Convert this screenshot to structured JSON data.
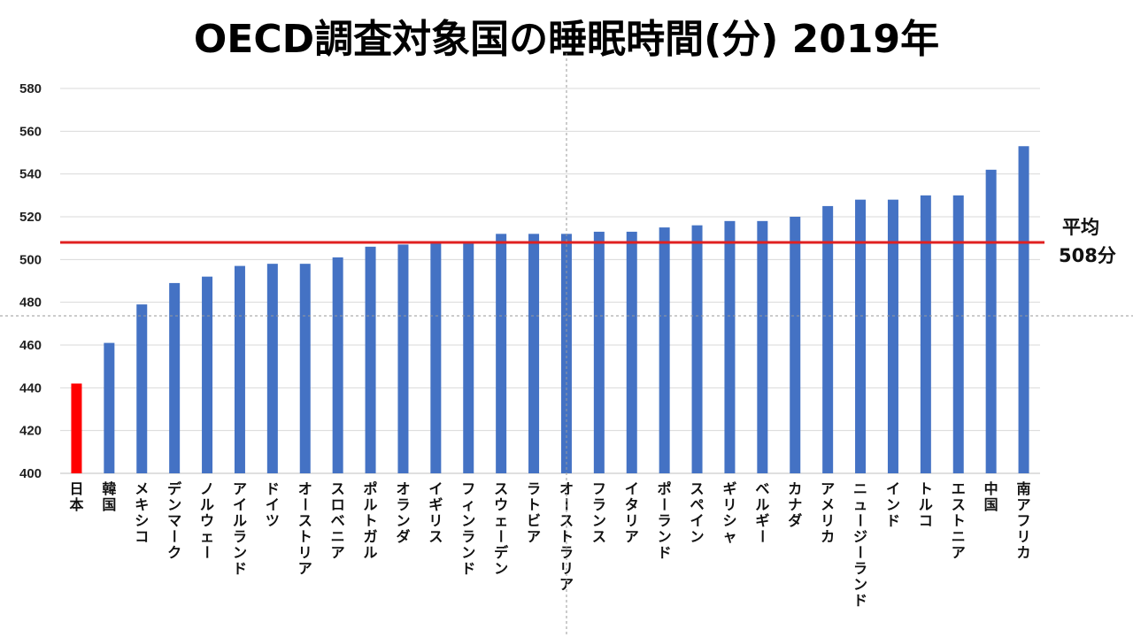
{
  "chart_data": {
    "type": "bar",
    "title": "OECD調査対象国の睡眠時間(分) 2019年",
    "xlabel": "",
    "ylabel": "",
    "ylim": [
      400,
      580
    ],
    "ytick_step": 20,
    "yticks": [
      "400",
      "420",
      "440",
      "460",
      "480",
      "500",
      "520",
      "540",
      "560",
      "580"
    ],
    "grid": true,
    "categories": [
      "日本",
      "韓国",
      "メキシコ",
      "デンマーク",
      "ノルウェー",
      "アイルランド",
      "ドイツ",
      "オーストリア",
      "スロベニア",
      "ポルトガル",
      "オランダ",
      "イギリス",
      "フィンランド",
      "スウェーデン",
      "ラトビア",
      "オーストラリア",
      "フランス",
      "イタリア",
      "ポーランド",
      "スペイン",
      "ギリシャ",
      "ベルギー",
      "カナダ",
      "アメリカ",
      "ニュージーランド",
      "インド",
      "トルコ",
      "エストニア",
      "中国",
      "南アフリカ"
    ],
    "values": [
      442,
      461,
      479,
      489,
      492,
      497,
      498,
      498,
      501,
      506,
      507,
      508,
      508,
      512,
      512,
      512,
      513,
      513,
      515,
      516,
      518,
      518,
      520,
      525,
      528,
      528,
      530,
      530,
      542,
      553
    ],
    "highlight_index": 0,
    "colors": {
      "bar": "#4472C4",
      "highlight": "#FF0000",
      "average_line": "#E02020",
      "grid": "#D9D9D9"
    },
    "average": {
      "value": 508,
      "label_line1": "平均",
      "label_line2": "508分"
    }
  }
}
